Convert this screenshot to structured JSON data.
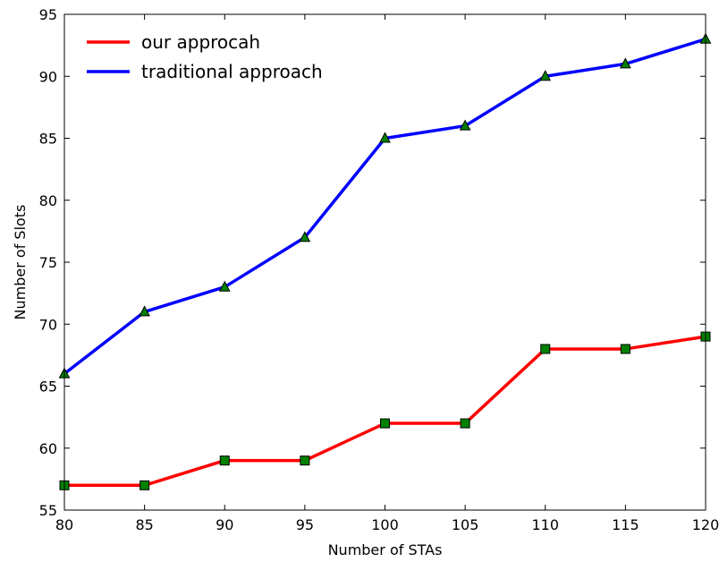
{
  "chart_data": {
    "type": "line",
    "xlabel": "Number of STAs",
    "ylabel": "Number of Slots",
    "xlim": [
      80,
      120
    ],
    "ylim": [
      55,
      95
    ],
    "x": [
      80,
      85,
      90,
      95,
      100,
      105,
      110,
      115,
      120
    ],
    "x_ticks": [
      "80",
      "85",
      "90",
      "95",
      "100",
      "105",
      "110",
      "115",
      "120"
    ],
    "y_ticks": [
      "55",
      "60",
      "65",
      "70",
      "75",
      "80",
      "85",
      "90",
      "95"
    ],
    "grid": false,
    "legend_position": "top-left",
    "series": [
      {
        "name": "our approcah",
        "values": [
          57,
          57,
          59,
          59,
          62,
          62,
          68,
          68,
          69
        ],
        "color": "#ff0000",
        "marker": "square",
        "marker_color": "#008000"
      },
      {
        "name": "traditional approach",
        "values": [
          66,
          71,
          73,
          77,
          85,
          86,
          90,
          91,
          93
        ],
        "color": "#0000ff",
        "marker": "triangle",
        "marker_color": "#008000"
      }
    ]
  }
}
